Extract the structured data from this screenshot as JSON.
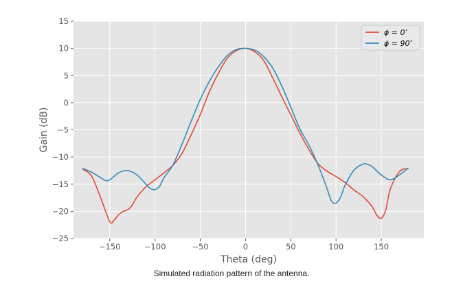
{
  "caption": "Simulated radiation pattern of the antenna.",
  "chart_data": {
    "type": "line",
    "xlabel": "Theta (deg)",
    "ylabel": "Gain (dB)",
    "xlim": [
      -190,
      197
    ],
    "ylim": [
      -25,
      15
    ],
    "xticks": [
      -150,
      -100,
      -50,
      0,
      50,
      100,
      150
    ],
    "yticks": [
      -25,
      -20,
      -15,
      -10,
      -5,
      0,
      5,
      10,
      15
    ],
    "grid": true,
    "legend_position": "top-right",
    "colors": {
      "background": "#e5e5e5",
      "grid": "#ffffff",
      "phi0": "#e24a33",
      "phi90": "#348abd"
    },
    "series": [
      {
        "name": "ϕ = 0°",
        "legend_main": "ϕ = 0",
        "legend_sup": "∘",
        "color": "#e24a33",
        "x": [
          -180,
          -170,
          -160,
          -150,
          -145,
          -140,
          -135,
          -130,
          -125,
          -120,
          -110,
          -100,
          -90,
          -80,
          -70,
          -60,
          -50,
          -40,
          -30,
          -20,
          -10,
          0,
          10,
          20,
          30,
          40,
          50,
          60,
          70,
          80,
          90,
          100,
          110,
          120,
          130,
          140,
          145,
          150,
          155,
          160,
          170,
          180
        ],
        "y": [
          -12.2,
          -13.5,
          -17.5,
          -21.9,
          -21.6,
          -20.6,
          -20.0,
          -19.7,
          -18.8,
          -17.4,
          -15.5,
          -14.2,
          -12.9,
          -11.5,
          -9.3,
          -5.9,
          -2.2,
          2.0,
          5.4,
          8.2,
          9.6,
          10.0,
          9.4,
          7.8,
          4.6,
          1.1,
          -2.2,
          -5.6,
          -8.6,
          -11.2,
          -12.6,
          -13.6,
          -14.7,
          -16.1,
          -17.3,
          -19.2,
          -20.7,
          -21.3,
          -19.7,
          -15.9,
          -12.7,
          -12.1
        ]
      },
      {
        "name": "ϕ = 90°",
        "legend_main": "ϕ = 90",
        "legend_sup": "∘",
        "color": "#348abd",
        "x": [
          -180,
          -170,
          -160,
          -155,
          -150,
          -140,
          -130,
          -120,
          -110,
          -105,
          -100,
          -95,
          -90,
          -80,
          -70,
          -60,
          -50,
          -40,
          -30,
          -20,
          -10,
          0,
          10,
          20,
          30,
          40,
          50,
          60,
          70,
          80,
          90,
          95,
          100,
          105,
          110,
          120,
          130,
          135,
          140,
          150,
          160,
          170,
          180
        ],
        "y": [
          -12.1,
          -12.8,
          -13.8,
          -14.3,
          -14.2,
          -12.9,
          -12.5,
          -13.3,
          -15.0,
          -15.8,
          -16.0,
          -15.4,
          -13.8,
          -11.4,
          -7.6,
          -3.4,
          0.6,
          3.9,
          6.6,
          8.7,
          9.8,
          10.0,
          9.7,
          8.5,
          6.4,
          3.1,
          -0.8,
          -4.8,
          -7.8,
          -11.4,
          -15.8,
          -18.1,
          -18.5,
          -17.4,
          -15.2,
          -12.4,
          -11.3,
          -11.4,
          -11.8,
          -13.3,
          -14.2,
          -13.3,
          -12.0
        ]
      }
    ]
  }
}
